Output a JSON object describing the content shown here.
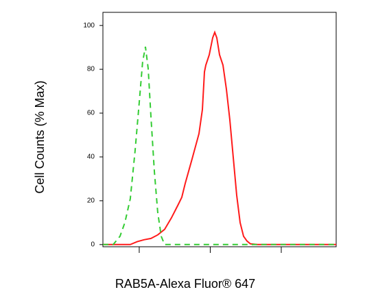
{
  "chart_data": {
    "type": "line",
    "x_label": "RAB5A-Alexa Fluor® 647",
    "y_label": "Cell Counts (% Max)",
    "xscale": "log",
    "xlim": [
      308,
      593000
    ],
    "xticks": [
      1000,
      10000,
      100000
    ],
    "ylim": [
      -1,
      106
    ],
    "yticks": [
      0,
      20,
      40,
      60,
      80,
      100
    ],
    "series": [
      {
        "color": "#ff1a1a",
        "style": "solid",
        "x": [
          308,
          748,
          936,
          1168,
          1460,
          1823,
          2277,
          2844,
          3554,
          3972,
          4438,
          5546,
          6931,
          7744,
          8279,
          8655,
          9673,
          10810,
          11560,
          12360,
          13500,
          15090,
          16870,
          18850,
          21080,
          23550,
          26320,
          29420,
          32880,
          36750,
          45920,
          593000
        ],
        "values": [
          0,
          0,
          1.3,
          2.2,
          2.8,
          4.4,
          6.9,
          12.2,
          18.4,
          21.6,
          27.8,
          39.1,
          50.6,
          61.6,
          78.8,
          81.9,
          86.6,
          94.4,
          96.9,
          94.4,
          86.6,
          81.9,
          70.9,
          56.9,
          39.7,
          22.5,
          10,
          3.8,
          1.6,
          0.3,
          0,
          0
        ]
      },
      {
        "color": "#33cc33",
        "style": "dashed",
        "x": [
          308,
          430,
          536,
          627,
          748,
          874,
          1000,
          1117,
          1222,
          1336,
          1460,
          1632,
          1823,
          2039,
          2277,
          2844,
          593000
        ],
        "values": [
          0,
          0,
          3.8,
          10,
          20.9,
          42.8,
          64.7,
          83.4,
          90.3,
          80.3,
          58.4,
          33.4,
          14.7,
          3.8,
          0,
          0,
          0
        ]
      }
    ]
  }
}
